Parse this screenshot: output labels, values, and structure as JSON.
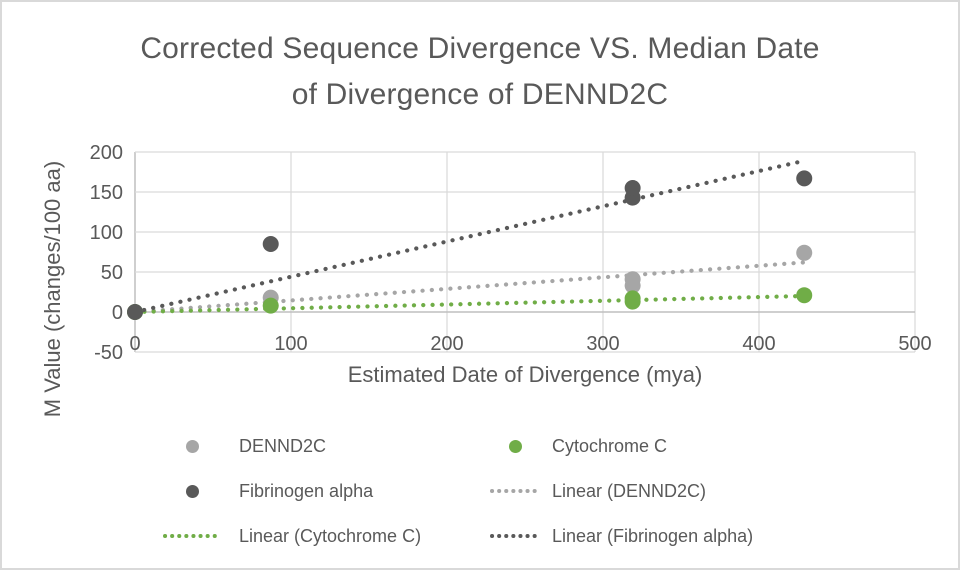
{
  "title_lines": [
    "Corrected Sequence Divergence VS. Median Date",
    "of Divergence of DENND2C"
  ],
  "colors": {
    "text": "#595959",
    "grid": "#d9d9d9",
    "axis": "#bfbfbf",
    "dennd2c": "#a6a6a6",
    "cytochrome_c": "#70ad47",
    "fibrinogen_alpha": "#595959",
    "background": "#ffffff",
    "border": "#d9d9d9"
  },
  "chart_data": {
    "type": "scatter",
    "title": "Corrected Sequence Divergence VS. Median Date of Divergence of DENND2C",
    "xlabel": "Estimated Date of Divergence (mya)",
    "ylabel": "M Value (changes/100 aa)",
    "xlim": [
      0,
      500
    ],
    "ylim": [
      -50,
      200
    ],
    "xticks": [
      0,
      100,
      200,
      300,
      400,
      500
    ],
    "yticks": [
      -50,
      0,
      50,
      100,
      150,
      200
    ],
    "grid": true,
    "legend_position": "bottom",
    "series": [
      {
        "name": "DENND2C",
        "color": "#a6a6a6",
        "marker": "circle",
        "points": [
          [
            0,
            0
          ],
          [
            87,
            18
          ],
          [
            319,
            33
          ],
          [
            319,
            41
          ],
          [
            429,
            74
          ]
        ]
      },
      {
        "name": "Cytochrome C",
        "color": "#70ad47",
        "marker": "circle",
        "points": [
          [
            0,
            0
          ],
          [
            87,
            8
          ],
          [
            319,
            13
          ],
          [
            319,
            17
          ],
          [
            429,
            21
          ]
        ]
      },
      {
        "name": "Fibrinogen alpha",
        "color": "#595959",
        "marker": "circle",
        "points": [
          [
            0,
            0
          ],
          [
            87,
            85
          ],
          [
            319,
            143
          ],
          [
            319,
            155
          ],
          [
            429,
            167
          ]
        ]
      }
    ],
    "trendlines": [
      {
        "name": "Linear (DENND2C)",
        "color": "#a6a6a6",
        "start": [
          0,
          0
        ],
        "end": [
          429,
          62
        ]
      },
      {
        "name": "Linear (Cytochrome C)",
        "color": "#70ad47",
        "start": [
          0,
          0
        ],
        "end": [
          429,
          20
        ]
      },
      {
        "name": "Linear (Fibrinogen alpha)",
        "color": "#595959",
        "start": [
          0,
          0
        ],
        "end": [
          429,
          189
        ]
      }
    ]
  },
  "legend": {
    "items": [
      {
        "label": "DENND2C",
        "swatch": "dot",
        "color": "#a6a6a6"
      },
      {
        "label": "Cytochrome C",
        "swatch": "dot",
        "color": "#70ad47"
      },
      {
        "label": "Fibrinogen alpha",
        "swatch": "dot",
        "color": "#595959"
      },
      {
        "label": "Linear (DENND2C)",
        "swatch": "dotted-line",
        "color": "#a6a6a6"
      },
      {
        "label": "Linear (Cytochrome C)",
        "swatch": "dotted-line",
        "color": "#70ad47"
      },
      {
        "label": "Linear (Fibrinogen alpha)",
        "swatch": "dotted-line",
        "color": "#595959"
      }
    ]
  }
}
